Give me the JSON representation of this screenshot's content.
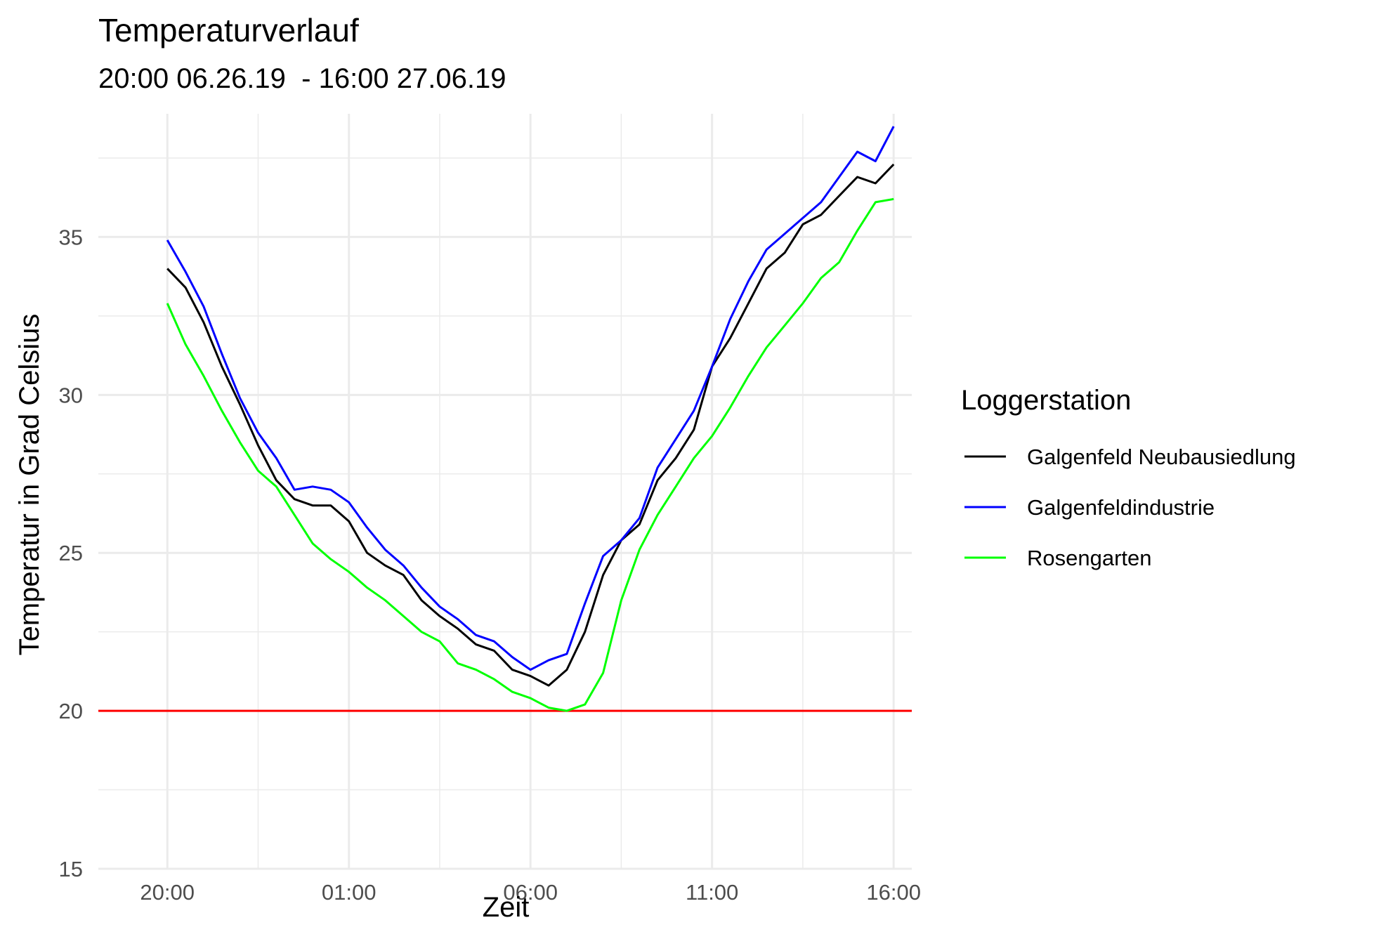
{
  "chart_data": {
    "type": "line",
    "title": "Temperaturverlauf",
    "subtitle": "20:00 06.26.19  - 16:00 27.06.19",
    "xlabel": "Zeit",
    "ylabel": "Temperatur in Grad Celsius",
    "x_unit": "hours",
    "xlim": [
      -1.9,
      20.5
    ],
    "ylim": [
      15,
      38.9
    ],
    "x_ticks": [
      {
        "value": 0,
        "label": "20:00"
      },
      {
        "value": 5,
        "label": "01:00"
      },
      {
        "value": 10,
        "label": "06:00"
      },
      {
        "value": 15,
        "label": "11:00"
      },
      {
        "value": 20,
        "label": "16:00"
      }
    ],
    "y_ticks": [
      {
        "value": 15,
        "label": "15"
      },
      {
        "value": 20,
        "label": "20"
      },
      {
        "value": 25,
        "label": "25"
      },
      {
        "value": 30,
        "label": "30"
      },
      {
        "value": 35,
        "label": "35"
      }
    ],
    "grid": true,
    "reference_line": {
      "y": 20,
      "color": "#ff0000"
    },
    "legend": {
      "title": "Loggerstation",
      "position": "right"
    },
    "series": [
      {
        "name": "Galgenfeld Neubausiedlung",
        "color": "#000000",
        "points": [
          [
            0,
            34.0
          ],
          [
            0.5,
            33.4
          ],
          [
            1,
            32.3
          ],
          [
            1.5,
            30.9
          ],
          [
            2,
            29.7
          ],
          [
            2.5,
            28.4
          ],
          [
            3,
            27.3
          ],
          [
            3.5,
            26.7
          ],
          [
            4,
            26.5
          ],
          [
            4.5,
            26.5
          ],
          [
            5,
            26.0
          ],
          [
            5.5,
            25.0
          ],
          [
            6,
            24.6
          ],
          [
            6.5,
            24.3
          ],
          [
            7,
            23.5
          ],
          [
            7.5,
            23.0
          ],
          [
            8,
            22.6
          ],
          [
            8.5,
            22.1
          ],
          [
            9,
            21.9
          ],
          [
            9.5,
            21.3
          ],
          [
            10,
            21.1
          ],
          [
            10.5,
            20.8
          ],
          [
            11,
            21.3
          ],
          [
            11.5,
            22.5
          ],
          [
            12,
            24.3
          ],
          [
            12.5,
            25.4
          ],
          [
            13,
            25.9
          ],
          [
            13.5,
            27.3
          ],
          [
            14,
            28.0
          ],
          [
            14.5,
            28.9
          ],
          [
            15,
            30.9
          ],
          [
            15.5,
            31.8
          ],
          [
            16,
            32.9
          ],
          [
            16.5,
            34.0
          ],
          [
            17,
            34.5
          ],
          [
            17.5,
            35.4
          ],
          [
            18,
            35.7
          ],
          [
            18.5,
            36.3
          ],
          [
            19,
            36.9
          ],
          [
            19.5,
            36.7
          ],
          [
            20,
            37.3
          ]
        ]
      },
      {
        "name": "Galgenfeldindustrie",
        "color": "#0000ff",
        "points": [
          [
            0,
            34.9
          ],
          [
            0.5,
            33.9
          ],
          [
            1,
            32.8
          ],
          [
            1.5,
            31.3
          ],
          [
            2,
            29.9
          ],
          [
            2.5,
            28.8
          ],
          [
            3,
            28.0
          ],
          [
            3.5,
            27.0
          ],
          [
            4,
            27.1
          ],
          [
            4.5,
            27.0
          ],
          [
            5,
            26.6
          ],
          [
            5.5,
            25.8
          ],
          [
            6,
            25.1
          ],
          [
            6.5,
            24.6
          ],
          [
            7,
            23.9
          ],
          [
            7.5,
            23.3
          ],
          [
            8,
            22.9
          ],
          [
            8.5,
            22.4
          ],
          [
            9,
            22.2
          ],
          [
            9.5,
            21.7
          ],
          [
            10,
            21.3
          ],
          [
            10.5,
            21.6
          ],
          [
            11,
            21.8
          ],
          [
            11.5,
            23.4
          ],
          [
            12,
            24.9
          ],
          [
            12.5,
            25.4
          ],
          [
            13,
            26.1
          ],
          [
            13.5,
            27.7
          ],
          [
            14,
            28.6
          ],
          [
            14.5,
            29.5
          ],
          [
            15,
            30.9
          ],
          [
            15.5,
            32.4
          ],
          [
            16,
            33.6
          ],
          [
            16.5,
            34.6
          ],
          [
            17,
            35.1
          ],
          [
            17.5,
            35.6
          ],
          [
            18,
            36.1
          ],
          [
            18.5,
            36.9
          ],
          [
            19,
            37.7
          ],
          [
            19.5,
            37.4
          ],
          [
            20,
            38.5
          ]
        ]
      },
      {
        "name": "Rosengarten",
        "color": "#00ff00",
        "points": [
          [
            0,
            32.9
          ],
          [
            0.5,
            31.6
          ],
          [
            1,
            30.6
          ],
          [
            1.5,
            29.5
          ],
          [
            2,
            28.5
          ],
          [
            2.5,
            27.6
          ],
          [
            3,
            27.1
          ],
          [
            3.5,
            26.2
          ],
          [
            4,
            25.3
          ],
          [
            4.5,
            24.8
          ],
          [
            5,
            24.4
          ],
          [
            5.5,
            23.9
          ],
          [
            6,
            23.5
          ],
          [
            6.5,
            23.0
          ],
          [
            7,
            22.5
          ],
          [
            7.5,
            22.2
          ],
          [
            8,
            21.5
          ],
          [
            8.5,
            21.3
          ],
          [
            9,
            21.0
          ],
          [
            9.5,
            20.6
          ],
          [
            10,
            20.4
          ],
          [
            10.5,
            20.1
          ],
          [
            11,
            20.0
          ],
          [
            11.5,
            20.2
          ],
          [
            12,
            21.2
          ],
          [
            12.5,
            23.5
          ],
          [
            13,
            25.1
          ],
          [
            13.5,
            26.2
          ],
          [
            14,
            27.1
          ],
          [
            14.5,
            28.0
          ],
          [
            15,
            28.7
          ],
          [
            15.5,
            29.6
          ],
          [
            16,
            30.6
          ],
          [
            16.5,
            31.5
          ],
          [
            17,
            32.2
          ],
          [
            17.5,
            32.9
          ],
          [
            18,
            33.7
          ],
          [
            18.5,
            34.2
          ],
          [
            19,
            35.2
          ],
          [
            19.5,
            36.1
          ],
          [
            20,
            36.2
          ]
        ]
      }
    ]
  }
}
